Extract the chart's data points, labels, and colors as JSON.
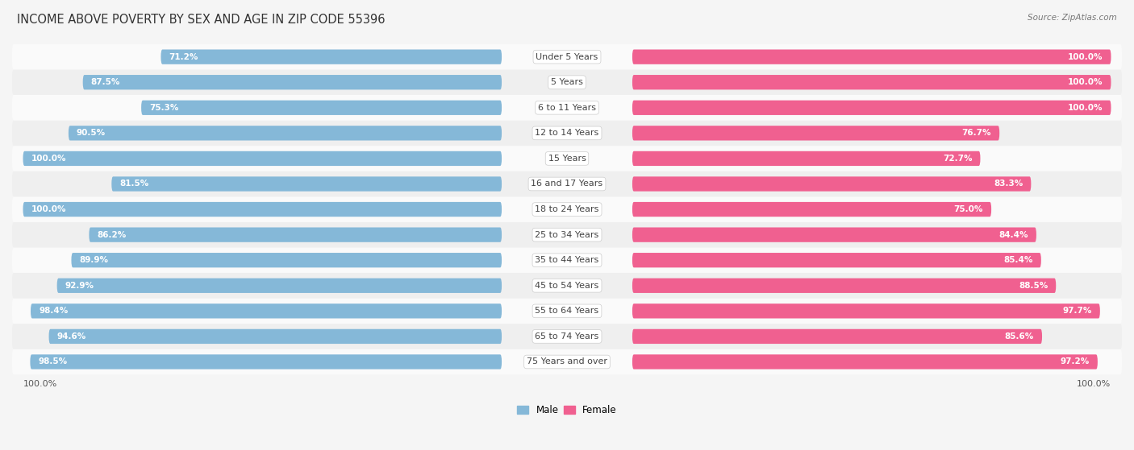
{
  "title": "INCOME ABOVE POVERTY BY SEX AND AGE IN ZIP CODE 55396",
  "source": "Source: ZipAtlas.com",
  "categories": [
    "Under 5 Years",
    "5 Years",
    "6 to 11 Years",
    "12 to 14 Years",
    "15 Years",
    "16 and 17 Years",
    "18 to 24 Years",
    "25 to 34 Years",
    "35 to 44 Years",
    "45 to 54 Years",
    "55 to 64 Years",
    "65 to 74 Years",
    "75 Years and over"
  ],
  "male_values": [
    71.2,
    87.5,
    75.3,
    90.5,
    100.0,
    81.5,
    100.0,
    86.2,
    89.9,
    92.9,
    98.4,
    94.6,
    98.5
  ],
  "female_values": [
    100.0,
    100.0,
    100.0,
    76.7,
    72.7,
    83.3,
    75.0,
    84.4,
    85.4,
    88.5,
    97.7,
    85.6,
    97.2
  ],
  "male_color": "#85b8d8",
  "female_color": "#F06090",
  "male_color_light": "#b8d9ed",
  "female_color_light": "#f7aec5",
  "male_label": "Male",
  "female_label": "Female",
  "row_color_odd": "#efefef",
  "row_color_even": "#fafafa",
  "background_color": "#f5f5f5",
  "title_fontsize": 10.5,
  "label_fontsize": 8,
  "value_fontsize": 7.5,
  "source_fontsize": 7.5
}
